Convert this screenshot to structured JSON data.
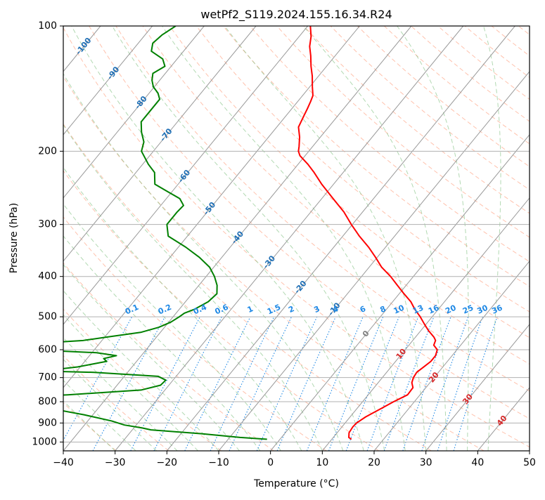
{
  "chart_data": {
    "type": "line",
    "chart_kind": "skew-T log-P diagram",
    "title": "wetPf2_S119.2024.155.16.34.R24",
    "xlabel": "Temperature (°C)",
    "ylabel": "Pressure (hPa)",
    "xlim": [
      -40,
      50
    ],
    "ylim": [
      1050,
      100
    ],
    "y_scale": "log",
    "x_ticks": [
      -40,
      -30,
      -20,
      -10,
      0,
      10,
      20,
      30,
      40,
      50
    ],
    "y_ticks": [
      100,
      200,
      300,
      400,
      500,
      600,
      700,
      800,
      900,
      1000
    ],
    "grid": true,
    "colors": {
      "temperature": "#ff0000",
      "dewpoint": "#008000",
      "isotherm": "#999999",
      "dry_adiabat": "#ff9977",
      "moist_adiabat": "#7fbf7f",
      "mixing_ratio": "#1e88e5",
      "isotherm_label": "#1f6fb5",
      "dry_adiabat_label": "#d62728",
      "zero_label": "#808080"
    },
    "series": [
      {
        "key": "temperature",
        "p": [
          985,
          975,
          950,
          920,
          900,
          870,
          830,
          800,
          770,
          740,
          720,
          700,
          680,
          660,
          640,
          620,
          600,
          585,
          570,
          560,
          540,
          520,
          500,
          480,
          460,
          440,
          420,
          400,
          380,
          360,
          340,
          320,
          300,
          280,
          260,
          240,
          225,
          215,
          205,
          200,
          195,
          185,
          175,
          165,
          158,
          152,
          147,
          140,
          132,
          125,
          118,
          112,
          106,
          100
        ],
        "t": [
          13.8,
          13,
          12.3,
          12.1,
          12.2,
          13,
          14.7,
          16,
          17.6,
          17.5,
          16.5,
          16,
          15.8,
          16.3,
          16.8,
          16.8,
          16.2,
          14.8,
          14.4,
          13.6,
          11.5,
          9.6,
          7.7,
          5.5,
          3.5,
          0.9,
          -1.7,
          -4.4,
          -7.6,
          -10.3,
          -13.3,
          -16.8,
          -20.2,
          -23.6,
          -27.8,
          -32.3,
          -35.6,
          -38.1,
          -41,
          -42,
          -42.6,
          -44,
          -45.8,
          -46.5,
          -47,
          -47.5,
          -48,
          -49.5,
          -51.2,
          -53,
          -54.7,
          -56.4,
          -57.7,
          -59.5
        ]
      },
      {
        "key": "dewpoint",
        "p": [
          985,
          975,
          955,
          935,
          925,
          910,
          890,
          860,
          830,
          810,
          800,
          790,
          780,
          770,
          750,
          730,
          710,
          695,
          680,
          675,
          660,
          650,
          640,
          630,
          620,
          610,
          600,
          595,
          590,
          585,
          580,
          575,
          570,
          560,
          545,
          530,
          515,
          500,
          490,
          480,
          460,
          440,
          420,
          400,
          380,
          360,
          340,
          320,
          300,
          280,
          270,
          260,
          250,
          240,
          225,
          215,
          200,
          190,
          180,
          170,
          160,
          150,
          145,
          140,
          135,
          130,
          125,
          120,
          115,
          110,
          105,
          100
        ],
        "t": [
          -2.5,
          -8,
          -16,
          -26.4,
          -28.4,
          -32.3,
          -35.4,
          -41.7,
          -49.3,
          -55.5,
          -59,
          -64,
          -55.6,
          -48,
          -34.6,
          -31.6,
          -31.4,
          -33.5,
          -46.5,
          -56.6,
          -50.5,
          -48.2,
          -45.8,
          -46.8,
          -44.8,
          -49.1,
          -62.3,
          -66.6,
          -71.3,
          -71.3,
          -66,
          -58,
          -53.6,
          -49.8,
          -43.8,
          -41.1,
          -39.6,
          -38.8,
          -38.4,
          -37.1,
          -35.6,
          -35.2,
          -36.5,
          -38.4,
          -40.8,
          -44.3,
          -48.6,
          -53.7,
          -55.8,
          -55.8,
          -55.6,
          -57.4,
          -60.9,
          -64.5,
          -66.4,
          -68.9,
          -72.3,
          -73.3,
          -75.3,
          -77,
          -77,
          -77,
          -78.3,
          -80.2,
          -81.5,
          -82.4,
          -81.2,
          -82.8,
          -86.2,
          -87.2,
          -86.7,
          -85.5
        ]
      }
    ],
    "isotherm_labels": [
      "-100",
      "-90",
      "-80",
      "-70",
      "-60",
      "-50",
      "-40",
      "-30",
      "-20",
      "-10"
    ],
    "mixing_ratio_labels": [
      "0.1",
      "0.2",
      "0.4",
      "0.6",
      "1",
      "1.5",
      "2",
      "3",
      "4",
      "6",
      "8",
      "10",
      "13",
      "16",
      "20",
      "25",
      "30",
      "36"
    ],
    "zero_label": "0",
    "dry_adiabat_labels": [
      "10",
      "20",
      "30",
      "40"
    ]
  }
}
